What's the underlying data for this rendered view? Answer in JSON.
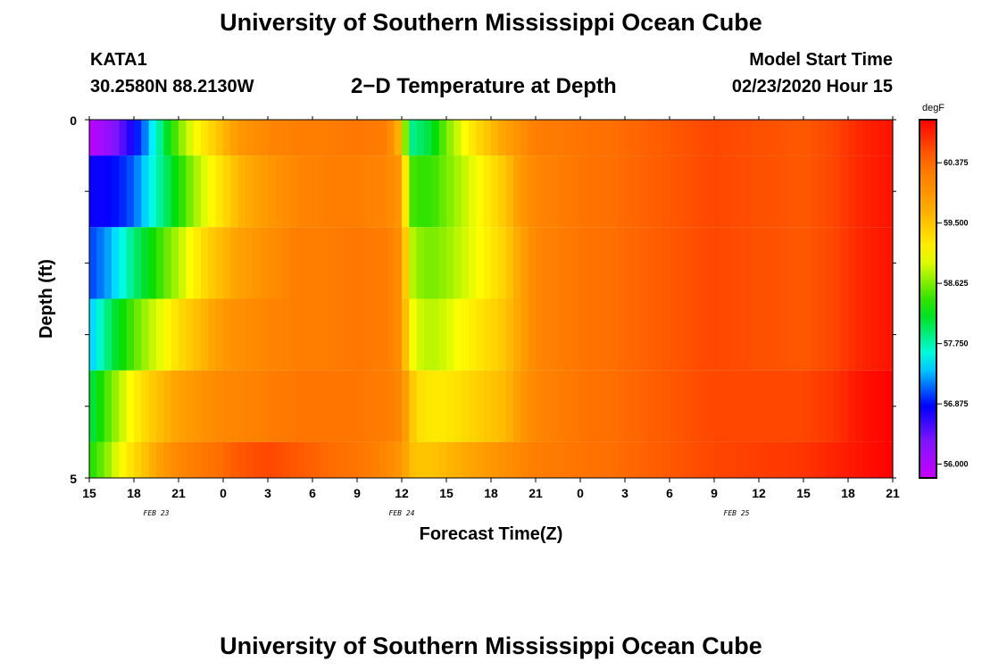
{
  "header": {
    "title_top": "University of Southern Mississippi Ocean Cube",
    "station": "KATA1",
    "coords": "30.2580N 88.2130W",
    "plot_title": "2−D Temperature at Depth",
    "model_label": "Model Start Time",
    "model_time": "02/23/2020 Hour 15",
    "title_bottom": "University of Southern Mississippi Ocean Cube"
  },
  "chart_data": {
    "type": "heatmap",
    "title": "2−D Temperature at Depth",
    "xlabel": "Forecast Time(Z)",
    "ylabel": "Depth (ft)",
    "unit": "degF",
    "x_hours_from_start": [
      0,
      54
    ],
    "ylim": [
      0,
      5
    ],
    "y_ticks": [
      "0",
      "5"
    ],
    "x_tick_labels": [
      "15",
      "18",
      "21",
      "0",
      "3",
      "6",
      "9",
      "12",
      "15",
      "18",
      "21",
      "0",
      "3",
      "6",
      "9",
      "12",
      "15",
      "18",
      "21"
    ],
    "date_labels": [
      {
        "text": "FEB 23",
        "hour": 4.5
      },
      {
        "text": "FEB 24",
        "hour": 21
      },
      {
        "text": "FEB 25",
        "hour": 43.5
      }
    ],
    "colorbar": {
      "min": 55.8,
      "max": 61.0,
      "ticks": [
        "56.000",
        "56.875",
        "57.750",
        "58.625",
        "59.500",
        "60.375"
      ],
      "tick_values": [
        56.0,
        56.875,
        57.75,
        58.625,
        59.5,
        60.375
      ]
    },
    "depth_rows": [
      {
        "depth_range": [
          0.0,
          0.5
        ],
        "hours": [
          0,
          1,
          2,
          3,
          4,
          5,
          6,
          7,
          8,
          9,
          10,
          12,
          14,
          16,
          18,
          20,
          21,
          21.5,
          22,
          23,
          24,
          26,
          28,
          29,
          30,
          33,
          36,
          42,
          48,
          50,
          52,
          54
        ],
        "values": [
          55.9,
          56.1,
          56.4,
          56.8,
          57.3,
          58.0,
          58.6,
          59.0,
          59.3,
          59.6,
          59.9,
          60.1,
          60.2,
          60.2,
          60.3,
          60.2,
          59.5,
          57.8,
          57.9,
          58.1,
          58.6,
          59.3,
          59.8,
          60.0,
          60.2,
          60.3,
          60.4,
          60.6,
          60.5,
          60.6,
          60.8,
          60.9
        ]
      },
      {
        "depth_range": [
          0.5,
          1.5
        ],
        "hours": [
          0,
          1,
          2,
          3,
          4,
          5,
          6,
          7,
          8,
          9,
          10,
          12,
          14,
          16,
          18,
          20,
          21,
          21.5,
          22,
          23,
          24,
          26,
          28,
          29,
          30,
          33,
          36,
          42,
          48,
          50,
          52,
          54
        ],
        "values": [
          56.8,
          56.8,
          56.9,
          57.1,
          57.5,
          57.9,
          58.3,
          58.7,
          59.0,
          59.3,
          59.6,
          59.9,
          60.1,
          60.2,
          60.2,
          60.1,
          59.9,
          58.5,
          58.4,
          58.4,
          58.6,
          59.0,
          59.5,
          59.9,
          60.1,
          60.3,
          60.4,
          60.6,
          60.5,
          60.6,
          60.8,
          60.9
        ]
      },
      {
        "depth_range": [
          1.5,
          2.5
        ],
        "hours": [
          0,
          1,
          2,
          3,
          4,
          5,
          6,
          7,
          8,
          9,
          10,
          12,
          14,
          16,
          18,
          20,
          21,
          21.5,
          22,
          23,
          24,
          26,
          28,
          29,
          30,
          33,
          36,
          42,
          48,
          50,
          52,
          54
        ],
        "values": [
          57.0,
          57.2,
          57.5,
          57.9,
          58.2,
          58.5,
          58.8,
          59.1,
          59.4,
          59.6,
          59.8,
          60.0,
          60.2,
          60.2,
          60.3,
          60.2,
          60.0,
          58.9,
          58.7,
          58.6,
          58.7,
          59.0,
          59.4,
          59.8,
          60.1,
          60.3,
          60.4,
          60.6,
          60.5,
          60.6,
          60.8,
          60.9
        ]
      },
      {
        "depth_range": [
          2.5,
          3.5
        ],
        "hours": [
          0,
          1,
          2,
          3,
          4,
          5,
          6,
          7,
          8,
          9,
          10,
          12,
          14,
          16,
          18,
          20,
          21,
          21.5,
          22,
          23,
          24,
          26,
          28,
          29,
          30,
          33,
          36,
          42,
          48,
          50,
          52,
          54
        ],
        "values": [
          57.3,
          57.8,
          58.2,
          58.5,
          58.8,
          59.0,
          59.3,
          59.5,
          59.7,
          59.9,
          60.0,
          60.1,
          60.2,
          60.2,
          60.3,
          60.2,
          60.0,
          59.1,
          58.9,
          58.8,
          58.9,
          59.2,
          59.5,
          59.8,
          60.1,
          60.3,
          60.4,
          60.6,
          60.5,
          60.6,
          60.8,
          60.9
        ]
      },
      {
        "depth_range": [
          3.5,
          4.5
        ],
        "hours": [
          0,
          1,
          2,
          3,
          4,
          5,
          6,
          7,
          8,
          9,
          10,
          12,
          14,
          16,
          18,
          20,
          21,
          21.5,
          22,
          23,
          24,
          26,
          28,
          29,
          30,
          33,
          36,
          42,
          48,
          50,
          52,
          54
        ],
        "values": [
          58.0,
          58.4,
          58.8,
          59.1,
          59.4,
          59.6,
          59.8,
          59.9,
          60.0,
          60.1,
          60.1,
          60.2,
          60.3,
          60.3,
          60.3,
          60.2,
          60.1,
          59.6,
          59.3,
          59.2,
          59.2,
          59.4,
          59.6,
          59.9,
          60.1,
          60.3,
          60.4,
          60.6,
          60.6,
          60.7,
          60.9,
          61.0
        ]
      },
      {
        "depth_range": [
          4.5,
          5.0
        ],
        "hours": [
          0,
          1,
          2,
          3,
          4,
          5,
          6,
          7,
          8,
          9,
          10,
          12,
          14,
          16,
          18,
          20,
          21,
          21.5,
          22,
          23,
          24,
          26,
          28,
          29,
          30,
          33,
          36,
          42,
          48,
          50,
          52,
          54
        ],
        "values": [
          58.3,
          58.6,
          59.0,
          59.3,
          59.6,
          59.9,
          60.1,
          60.2,
          60.3,
          60.4,
          60.5,
          60.6,
          60.5,
          60.4,
          60.3,
          60.1,
          59.9,
          59.6,
          59.5,
          59.5,
          59.6,
          59.8,
          60.0,
          60.1,
          60.2,
          60.3,
          60.4,
          60.6,
          60.7,
          60.8,
          60.9,
          61.0
        ]
      }
    ]
  }
}
